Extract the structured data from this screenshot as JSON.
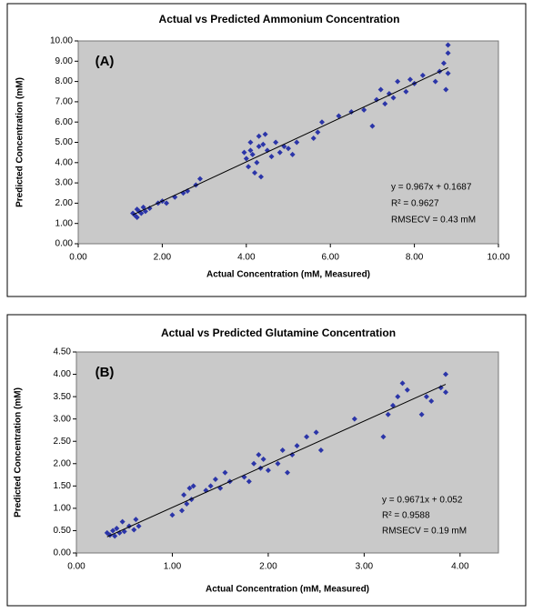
{
  "chart_data": [
    {
      "type": "scatter",
      "title": "Actual vs Predicted Ammonium Concentration",
      "x_label": "Actual Concentration (mM, Measured)",
      "y_label": "Predicted Concentration (mM)",
      "annotations": [
        "(A)",
        "y = 0.967x + 0.1687",
        "R² = 0.9627",
        "RMSECV = 0.43 mM"
      ],
      "trendline": {
        "slope": 0.967,
        "intercept": 0.1687
      },
      "color": "#2b35a8",
      "xlim": [
        0,
        10
      ],
      "ylim": [
        0,
        10
      ],
      "xticks": [
        {
          "value": 0,
          "label": "0.00"
        },
        {
          "value": 2,
          "label": "2.00"
        },
        {
          "value": 4,
          "label": "4.00"
        },
        {
          "value": 6,
          "label": "6.00"
        },
        {
          "value": 8,
          "label": "8.00"
        },
        {
          "value": 10,
          "label": "10.00"
        }
      ],
      "yticks": [
        {
          "value": 0,
          "label": "0.00"
        },
        {
          "value": 1,
          "label": "1.00"
        },
        {
          "value": 2,
          "label": "2.00"
        },
        {
          "value": 3,
          "label": "3.00"
        },
        {
          "value": 4,
          "label": "4.00"
        },
        {
          "value": 5,
          "label": "5.00"
        },
        {
          "value": 6,
          "label": "6.00"
        },
        {
          "value": 7,
          "label": "7.00"
        },
        {
          "value": 8,
          "label": "8.00"
        },
        {
          "value": 9,
          "label": "9.00"
        },
        {
          "value": 10,
          "label": "10.00"
        }
      ],
      "x": [
        1.3,
        1.35,
        1.4,
        1.4,
        1.45,
        1.5,
        1.55,
        1.6,
        1.7,
        1.9,
        2.0,
        2.1,
        2.3,
        2.5,
        2.6,
        2.8,
        2.9,
        3.95,
        4.0,
        4.05,
        4.1,
        4.1,
        4.15,
        4.2,
        4.25,
        4.3,
        4.3,
        4.35,
        4.4,
        4.45,
        4.5,
        4.6,
        4.7,
        4.8,
        4.9,
        5.0,
        5.1,
        5.2,
        5.6,
        5.7,
        5.8,
        6.2,
        6.5,
        6.8,
        7.0,
        7.1,
        7.2,
        7.3,
        7.4,
        7.5,
        7.6,
        7.8,
        7.9,
        8.0,
        8.2,
        8.5,
        8.6,
        8.7,
        8.75,
        8.8,
        8.8,
        8.8
      ],
      "values": [
        1.5,
        1.4,
        1.7,
        1.3,
        1.6,
        1.5,
        1.8,
        1.6,
        1.75,
        2.0,
        2.1,
        2.0,
        2.3,
        2.5,
        2.6,
        2.9,
        3.2,
        4.5,
        4.2,
        3.8,
        4.6,
        5.0,
        4.4,
        3.5,
        4.0,
        5.3,
        4.8,
        3.3,
        4.9,
        5.4,
        4.6,
        4.3,
        5.0,
        4.5,
        4.8,
        4.7,
        4.4,
        5.0,
        5.2,
        5.5,
        6.0,
        6.3,
        6.5,
        6.6,
        5.8,
        7.1,
        7.6,
        6.9,
        7.4,
        7.2,
        8.0,
        7.5,
        8.1,
        7.9,
        8.3,
        8.0,
        8.5,
        8.9,
        7.6,
        9.4,
        9.8,
        8.4
      ]
    },
    {
      "type": "scatter",
      "title": "Actual vs Predicted Glutamine Concentration",
      "x_label": "Actual Concentration (mM, Measured)",
      "y_label": "Predicted Concentration (mM)",
      "annotations": [
        "(B)",
        "y = 0.9671x + 0.052",
        "R² = 0.9588",
        "RMSECV = 0.19 mM"
      ],
      "trendline": {
        "slope": 0.9671,
        "intercept": 0.052
      },
      "color": "#2b35a8",
      "xlim": [
        0,
        4.4
      ],
      "ylim": [
        0,
        4.5
      ],
      "xticks": [
        {
          "value": 0,
          "label": "0.00"
        },
        {
          "value": 1,
          "label": "1.00"
        },
        {
          "value": 2,
          "label": "2.00"
        },
        {
          "value": 3,
          "label": "3.00"
        },
        {
          "value": 4,
          "label": "4.00"
        }
      ],
      "yticks": [
        {
          "value": 0,
          "label": "0.00"
        },
        {
          "value": 0.5,
          "label": "0.50"
        },
        {
          "value": 1,
          "label": "1.00"
        },
        {
          "value": 1.5,
          "label": "1.50"
        },
        {
          "value": 2,
          "label": "2.00"
        },
        {
          "value": 2.5,
          "label": "2.50"
        },
        {
          "value": 3,
          "label": "3.00"
        },
        {
          "value": 3.5,
          "label": "3.50"
        },
        {
          "value": 4,
          "label": "4.00"
        },
        {
          "value": 4.5,
          "label": "4.50"
        }
      ],
      "x": [
        0.32,
        0.35,
        0.38,
        0.4,
        0.42,
        0.45,
        0.48,
        0.5,
        0.55,
        0.6,
        0.62,
        0.65,
        1.0,
        1.1,
        1.12,
        1.15,
        1.18,
        1.2,
        1.22,
        1.35,
        1.4,
        1.45,
        1.5,
        1.55,
        1.6,
        1.75,
        1.8,
        1.85,
        1.9,
        1.92,
        1.95,
        2.0,
        2.1,
        2.15,
        2.2,
        2.25,
        2.3,
        2.4,
        2.5,
        2.55,
        2.9,
        3.2,
        3.25,
        3.3,
        3.35,
        3.4,
        3.45,
        3.6,
        3.65,
        3.7,
        3.8,
        3.85,
        3.85
      ],
      "values": [
        0.45,
        0.4,
        0.5,
        0.38,
        0.55,
        0.45,
        0.7,
        0.48,
        0.6,
        0.52,
        0.75,
        0.6,
        0.85,
        0.95,
        1.3,
        1.1,
        1.45,
        1.2,
        1.5,
        1.4,
        1.5,
        1.65,
        1.45,
        1.8,
        1.6,
        1.7,
        1.6,
        2.0,
        2.2,
        1.9,
        2.1,
        1.85,
        2.0,
        2.3,
        1.8,
        2.2,
        2.4,
        2.6,
        2.7,
        2.3,
        3.0,
        2.6,
        3.1,
        3.3,
        3.5,
        3.8,
        3.65,
        3.1,
        3.5,
        3.4,
        3.7,
        4.0,
        3.6
      ]
    }
  ]
}
